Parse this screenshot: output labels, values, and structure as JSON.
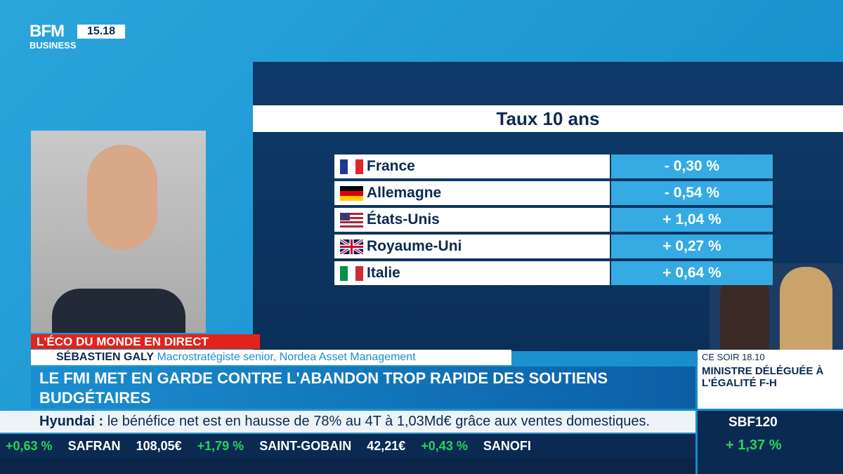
{
  "brand": {
    "logo_top": "BFM",
    "logo_bottom": "BUSINESS",
    "time": "15.18"
  },
  "table": {
    "title": "Taux 10 ans",
    "rows": [
      [
        "France",
        "- 0,30 %"
      ],
      [
        "Allemagne",
        "- 0,54 %"
      ],
      [
        "États-Unis",
        "+ 1,04 %"
      ],
      [
        "Royaume-Uni",
        "+ 0,27 %"
      ],
      [
        "Italie",
        "+ 0,64 %"
      ]
    ]
  },
  "lower_third": {
    "show": "L'ÉCO DU MONDE EN DIRECT",
    "guest_name": "SÉBASTIEN GALY",
    "guest_role": "Macrostratégiste senior, Nordea Asset Management",
    "headline": "LE FMI MET EN GARDE CONTRE L'ABANDON TROP RAPIDE DES SOUTIENS BUDGÉTAIRES"
  },
  "promo": {
    "when": "CE SOIR 18.10",
    "text": "MINISTRE DÉLÉGUÉE À L'ÉGALITÉ F-H"
  },
  "news_ticker": {
    "company": "Hyundai :",
    "text": "le bénéfice net est en hausse de 78% au 4T à 1,03Md€ grâce aux ventes domestiques."
  },
  "index": {
    "name": "SBF120",
    "change": "+ 1,37 %"
  },
  "stocks": [
    {
      "change": "+0,63 %"
    },
    {
      "name": "SAFRAN",
      "price": "108,05€",
      "change": "+1,79 %"
    },
    {
      "name": "SAINT-GOBAIN",
      "price": "42,21€",
      "change": "+0,43 %"
    },
    {
      "name": "SANOFI"
    }
  ]
}
